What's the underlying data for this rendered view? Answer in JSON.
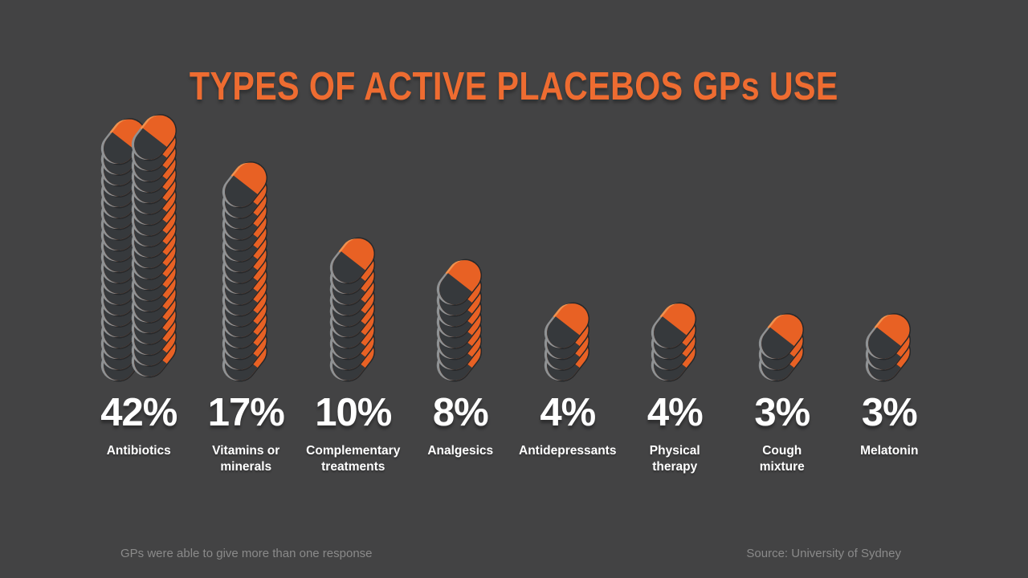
{
  "title": "TYPES OF ACTIVE PLACEBOS GPs USE",
  "footnote": "GPs were able to give more than one response",
  "source": "Source: University of Sydney",
  "colors": {
    "background": "#434344",
    "accent_orange": "#ee6c31",
    "pill_orange": "#e86124",
    "pill_orange_rim": "#f0924f",
    "pill_dark": "#36393c",
    "pill_edge": "#26282a",
    "pill_rim": "#8f9294",
    "text_white": "#ffffff",
    "text_muted": "#8a8a8a"
  },
  "chart_data": {
    "type": "bar",
    "title": "TYPES OF ACTIVE PLACEBOS GPs USE",
    "unit": "percent",
    "categories": [
      "Antibiotics",
      "Vitamins or\nminerals",
      "Complementary\ntreatments",
      "Analgesics",
      "Antidepressants",
      "Physical\ntherapy",
      "Cough\nmixture",
      "Melatonin"
    ],
    "values": [
      42,
      17,
      10,
      8,
      4,
      4,
      3,
      3
    ],
    "value_labels": [
      "42%",
      "17%",
      "10%",
      "8%",
      "4%",
      "4%",
      "3%",
      "3%"
    ],
    "xlabel": "",
    "ylabel": "",
    "legend": null,
    "grid": false,
    "note": "Each bar is a stack of pill capsules, one pill per percentage point; the 42% bar is drawn as two side-by-side stacks of 21 pills."
  }
}
